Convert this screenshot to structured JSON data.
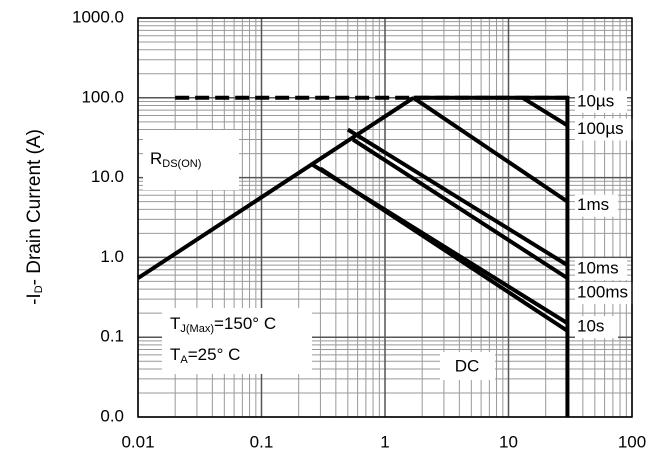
{
  "chart_data": {
    "type": "line",
    "log_x": true,
    "log_y": true,
    "grid": true,
    "minor_grid": true,
    "xlim": [
      0.01,
      100
    ],
    "xticks": [
      0.01,
      0.1,
      1,
      10,
      100
    ],
    "ylim": [
      0.01,
      1000
    ],
    "yticks": [
      {
        "value": 0.01,
        "label": "0.0"
      },
      {
        "value": 0.1,
        "label": "0.1"
      },
      {
        "value": 1,
        "label": "1.0"
      },
      {
        "value": 10,
        "label": "10.0"
      },
      {
        "value": 100,
        "label": "100.0"
      },
      {
        "value": 1000,
        "label": "1000.0"
      }
    ],
    "y_label": [
      "-I",
      "D",
      "- Drain Current (A)"
    ],
    "rds_label": [
      "R",
      "DS(ON)"
    ],
    "tj_label": [
      "T",
      "J(Max)",
      "=150° C"
    ],
    "ta_label": [
      "T",
      "A",
      "=25° C"
    ],
    "rds_on_x": [
      0.01,
      1.7
    ],
    "rds_on_values": [
      0.55,
      100
    ],
    "boundary_x": [
      1.7,
      30,
      30
    ],
    "boundary_values": [
      100,
      100,
      0.01
    ],
    "series": [
      {
        "name": "10µs",
        "color": "#000000",
        "dashed": true,
        "x": [
          0.02,
          30
        ],
        "values": [
          100,
          100
        ]
      },
      {
        "name": "100µs",
        "color": "#000000",
        "x": [
          13,
          30
        ],
        "values": [
          100,
          45
        ]
      },
      {
        "name": "1ms",
        "color": "#000000",
        "x": [
          1.7,
          30
        ],
        "values": [
          100,
          5
        ]
      },
      {
        "name": "10ms",
        "color": "#000000",
        "x": [
          0.5,
          30
        ],
        "values": [
          40,
          0.8
        ]
      },
      {
        "name": "100ms",
        "color": "#000000",
        "x": [
          0.55,
          30
        ],
        "values": [
          30,
          0.55
        ]
      },
      {
        "name": "10s",
        "color": "#000000",
        "x": [
          0.25,
          30
        ],
        "values": [
          15,
          0.15
        ]
      },
      {
        "name": "DC",
        "color": "#000000",
        "x": [
          0.3,
          30
        ],
        "values": [
          13,
          0.12
        ]
      }
    ]
  }
}
